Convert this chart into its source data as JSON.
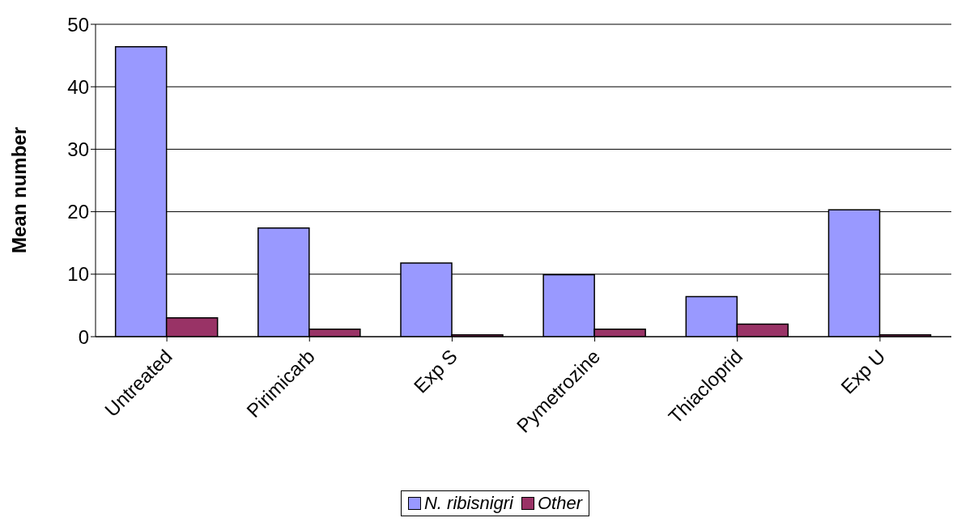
{
  "chart_data": {
    "type": "bar",
    "ylabel": "Mean number",
    "categories": [
      "Untreated",
      "Pirimicarb",
      "Exp S",
      "Pymetrozine",
      "Thiacloprid",
      "Exp U"
    ],
    "series": [
      {
        "name": "N. ribisnigri",
        "color": "#9999ff",
        "values": [
          46.4,
          17.4,
          11.8,
          9.9,
          6.4,
          20.3
        ]
      },
      {
        "name": "Other",
        "color": "#993366",
        "values": [
          3.0,
          1.2,
          0.3,
          1.2,
          2.0,
          0.3
        ]
      }
    ],
    "ylim": [
      0,
      50
    ],
    "yticks": [
      0,
      10,
      20,
      30,
      40,
      50
    ],
    "grid": "y",
    "legend": "bottom"
  }
}
